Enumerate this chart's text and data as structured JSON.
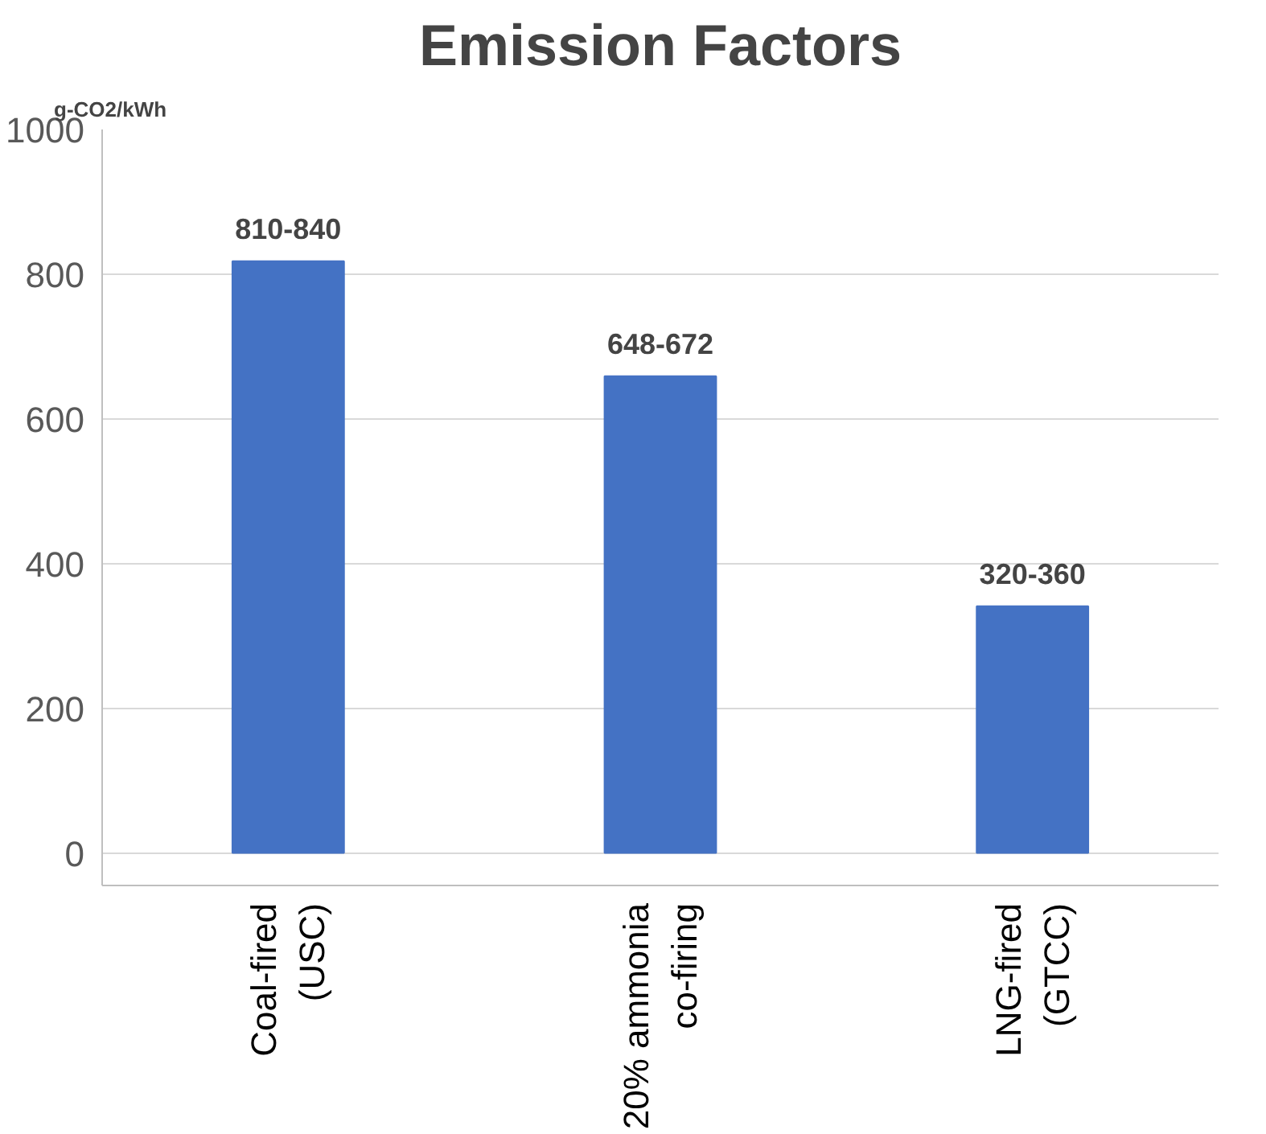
{
  "chart_data": {
    "type": "bar",
    "title": "Emission Factors",
    "ylabel": "g-CO2/kWh",
    "categories": [
      "Coal-fired\n(USC)",
      "20% ammonia\nco-firing",
      "LNG-fired\n(GTCC)"
    ],
    "values": [
      818,
      659,
      341
    ],
    "value_labels": [
      "810-840",
      "648-672",
      "320-360"
    ],
    "color": "#4472c4",
    "ylim": [
      -45,
      1000
    ],
    "yticks": [
      0,
      200,
      400,
      600,
      800,
      1000
    ],
    "grid": "y"
  }
}
